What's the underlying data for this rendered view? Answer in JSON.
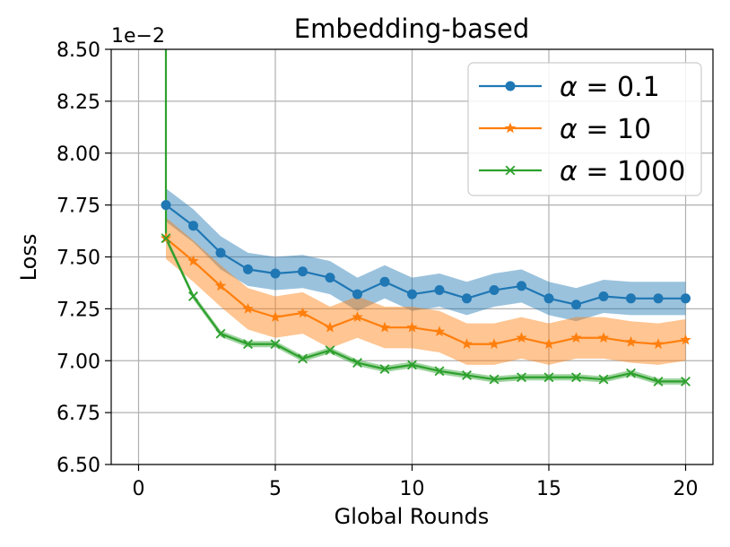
{
  "chart_data": {
    "type": "line",
    "title": "Embedding-based",
    "xlabel": "Global Rounds",
    "ylabel": "Loss",
    "offset_label": "1e−2",
    "xlim": [
      -1,
      21
    ],
    "ylim": [
      6.5,
      8.5
    ],
    "xticks": [
      0,
      5,
      10,
      15,
      20
    ],
    "xtick_labels": [
      "0",
      "5",
      "10",
      "15",
      "20"
    ],
    "yticks": [
      6.5,
      6.75,
      7.0,
      7.25,
      7.5,
      7.75,
      8.0,
      8.25,
      8.5
    ],
    "ytick_labels": [
      "6.50",
      "6.75",
      "7.00",
      "7.25",
      "7.50",
      "7.75",
      "8.00",
      "8.25",
      "8.50"
    ],
    "grid": true,
    "legend_position": "top-right",
    "x": [
      1,
      2,
      3,
      4,
      5,
      6,
      7,
      8,
      9,
      10,
      11,
      12,
      13,
      14,
      15,
      16,
      17,
      18,
      19,
      20
    ],
    "series": [
      {
        "name": "α = 0.1",
        "alpha_symbol": "α",
        "alpha_value": "= 0.1",
        "color": "#1f77b4",
        "marker": "circle",
        "values": [
          7.75,
          7.65,
          7.52,
          7.44,
          7.42,
          7.43,
          7.4,
          7.32,
          7.38,
          7.32,
          7.34,
          7.3,
          7.34,
          7.36,
          7.3,
          7.27,
          7.31,
          7.3,
          7.3,
          7.3
        ],
        "band": 0.08
      },
      {
        "name": "α = 10",
        "alpha_symbol": "α",
        "alpha_value": "= 10",
        "color": "#ff7f0e",
        "marker": "star",
        "values": [
          7.59,
          7.48,
          7.36,
          7.25,
          7.21,
          7.23,
          7.16,
          7.21,
          7.16,
          7.16,
          7.14,
          7.08,
          7.08,
          7.11,
          7.08,
          7.11,
          7.11,
          7.09,
          7.08,
          7.1
        ],
        "band": 0.1
      },
      {
        "name": "α = 1000",
        "alpha_symbol": "α",
        "alpha_value": "= 1000",
        "color": "#2ca02c",
        "marker": "x",
        "values": [
          7.59,
          7.31,
          7.13,
          7.08,
          7.08,
          7.01,
          7.05,
          6.99,
          6.96,
          6.98,
          6.95,
          6.93,
          6.91,
          6.92,
          6.92,
          6.92,
          6.91,
          6.94,
          6.9,
          6.9
        ],
        "band": 0.015,
        "leading_segment": [
          [
            1,
            8.5
          ],
          [
            1,
            7.59
          ]
        ]
      }
    ]
  }
}
